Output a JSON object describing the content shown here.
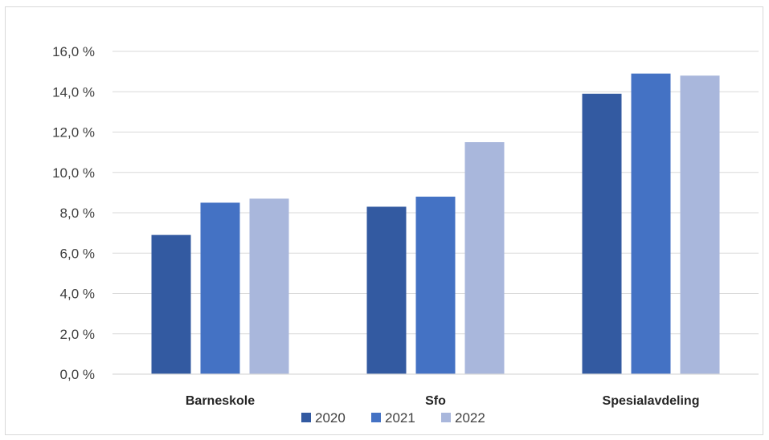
{
  "chart_data": {
    "type": "bar",
    "title": "",
    "xlabel": "",
    "ylabel": "",
    "categories": [
      "Barneskole",
      "Sfo",
      "Spesialavdeling"
    ],
    "series": [
      {
        "name": "2020",
        "values": [
          6.9,
          8.3,
          13.9
        ]
      },
      {
        "name": "2021",
        "values": [
          8.5,
          8.8,
          14.9
        ]
      },
      {
        "name": "2022",
        "values": [
          8.7,
          11.5,
          14.8
        ]
      }
    ],
    "colors": [
      "#335AA1",
      "#4472C4",
      "#A9B7DC"
    ],
    "ylim": [
      0,
      16
    ],
    "y_ticks": [
      0,
      2,
      4,
      6,
      8,
      10,
      12,
      14,
      16
    ],
    "y_tick_labels": [
      "0,0 %",
      "2,0 %",
      "4,0 %",
      "6,0 %",
      "8,0 %",
      "10,0 %",
      "12,0 %",
      "14,0 %",
      "16,0 %"
    ],
    "grid": true,
    "legend_position": "bottom"
  }
}
